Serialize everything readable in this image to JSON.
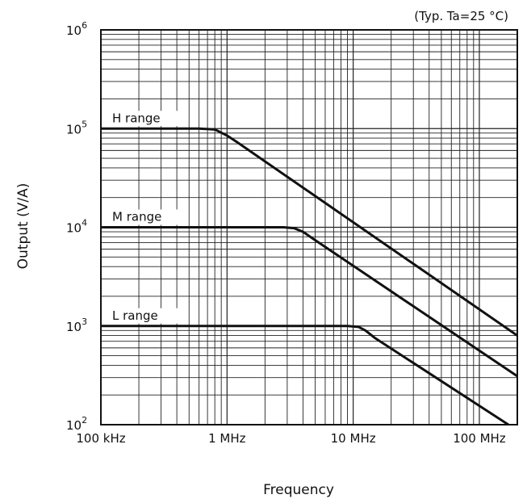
{
  "chart_data": {
    "type": "line",
    "title": "",
    "annotation": "(Typ. Ta=25 °C)",
    "xlabel": "Frequency",
    "ylabel": "Output (V/A)",
    "x_scale": "log",
    "y_scale": "log",
    "x_unit": "Hz",
    "y_unit": "V/A",
    "xlim": [
      100000,
      200000000
    ],
    "ylim": [
      100,
      1000000
    ],
    "grid": true,
    "x_ticks": [
      {
        "value": 100000,
        "label": "100 kHz"
      },
      {
        "value": 1000000,
        "label": "1 MHz"
      },
      {
        "value": 10000000,
        "label": "10 MHz"
      },
      {
        "value": 100000000,
        "label": "100 MHz"
      }
    ],
    "y_ticks": [
      {
        "value": 100,
        "base": "10",
        "exp": "2"
      },
      {
        "value": 1000,
        "base": "10",
        "exp": "3"
      },
      {
        "value": 10000,
        "base": "10",
        "exp": "4"
      },
      {
        "value": 100000,
        "base": "10",
        "exp": "5"
      },
      {
        "value": 1000000,
        "base": "10",
        "exp": "6"
      }
    ],
    "series": [
      {
        "name": "H range",
        "color": "#111111",
        "points": [
          [
            100000,
            100000
          ],
          [
            600000,
            100000
          ],
          [
            800000,
            98000
          ],
          [
            1000000,
            85000
          ],
          [
            1200000,
            73000
          ],
          [
            200000000,
            800
          ]
        ]
      },
      {
        "name": "M range",
        "color": "#111111",
        "points": [
          [
            100000,
            10000
          ],
          [
            2800000,
            10000
          ],
          [
            3400000,
            9800
          ],
          [
            4000000,
            9000
          ],
          [
            5000000,
            7400
          ],
          [
            200000000,
            310
          ]
        ]
      },
      {
        "name": "L range",
        "color": "#111111",
        "points": [
          [
            100000,
            1000
          ],
          [
            9000000,
            1000
          ],
          [
            11000000,
            980
          ],
          [
            12500000,
            900
          ],
          [
            15000000,
            750
          ],
          [
            170000000,
            100
          ]
        ]
      }
    ]
  }
}
